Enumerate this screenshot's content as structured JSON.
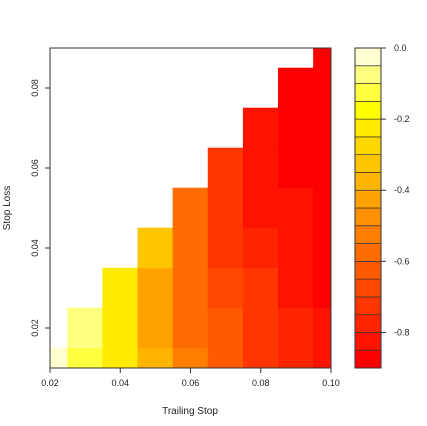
{
  "chart_data": {
    "type": "heatmap",
    "subtype": "filled-contour",
    "xlabel": "Trailing Stop",
    "ylabel": "Stop Loss",
    "xlim": [
      0.02,
      0.1
    ],
    "ylim": [
      0.01,
      0.09
    ],
    "x_ticks": [
      "0.02",
      "0.04",
      "0.06",
      "0.08",
      "0.10"
    ],
    "x_tick_values": [
      0.02,
      0.04,
      0.06,
      0.08,
      0.1
    ],
    "y_ticks": [
      "0.02",
      "0.04",
      "0.06",
      "0.08"
    ],
    "y_tick_values": [
      0.02,
      0.04,
      0.06,
      0.08
    ],
    "x": [
      0.02,
      0.03,
      0.04,
      0.05,
      0.06,
      0.07,
      0.08,
      0.09,
      0.1
    ],
    "y": [
      0.01,
      0.02,
      0.03,
      0.04,
      0.05,
      0.06,
      0.07,
      0.08,
      0.09
    ],
    "z": [
      [
        -0.02,
        -0.1,
        -0.22,
        -0.38,
        -0.52,
        -0.62,
        -0.7,
        -0.76,
        -0.82
      ],
      [
        null,
        -0.08,
        -0.24,
        -0.42,
        -0.56,
        -0.64,
        -0.72,
        -0.78,
        -0.84
      ],
      [
        null,
        null,
        -0.2,
        -0.4,
        -0.58,
        -0.68,
        -0.74,
        -0.8,
        -0.86
      ],
      [
        null,
        null,
        null,
        -0.34,
        -0.56,
        -0.7,
        -0.76,
        -0.82,
        -0.88
      ],
      [
        null,
        null,
        null,
        null,
        -0.58,
        -0.72,
        -0.8,
        -0.84,
        -0.89
      ],
      [
        null,
        null,
        null,
        null,
        null,
        -0.74,
        -0.82,
        -0.86,
        -0.88
      ],
      [
        null,
        null,
        null,
        null,
        null,
        null,
        -0.84,
        -0.88,
        -0.89
      ],
      [
        null,
        null,
        null,
        null,
        null,
        null,
        null,
        -0.88,
        -0.88
      ],
      [
        null,
        null,
        null,
        null,
        null,
        null,
        null,
        null,
        -0.87
      ]
    ],
    "colorbar": {
      "range": [
        -0.9,
        0.0
      ],
      "ticks": [
        "0.0",
        "-0.2",
        "-0.4",
        "-0.6",
        "-0.8"
      ],
      "tick_values": [
        0.0,
        -0.2,
        -0.4,
        -0.6,
        -0.8
      ],
      "levels": [
        -0.9,
        -0.85,
        -0.8,
        -0.75,
        -0.7,
        -0.65,
        -0.6,
        -0.55,
        -0.5,
        -0.45,
        -0.4,
        -0.35,
        -0.3,
        -0.25,
        -0.2,
        -0.15,
        -0.1,
        -0.05,
        0.0
      ],
      "colors": [
        "#ff0000",
        "#ff1200",
        "#ff2400",
        "#ff3600",
        "#ff4800",
        "#ff5a00",
        "#ff6c00",
        "#ff7e00",
        "#ff9000",
        "#ffa200",
        "#ffb400",
        "#ffc600",
        "#ffd800",
        "#ffea00",
        "#ffff00",
        "#ffff40",
        "#ffff80",
        "#ffffd0"
      ]
    }
  }
}
